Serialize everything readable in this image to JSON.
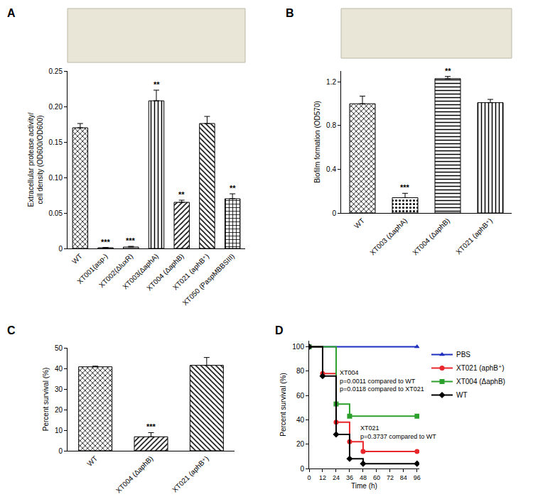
{
  "chart_data": [
    {
      "type": "bar",
      "title": "A",
      "y_label": "Extracellular protease activity/\ncell density (OD600/OD600)",
      "categories": [
        "WT",
        "XT001(asp-)",
        "XT002(ΔluxR)",
        "XT003(ΔaphA)",
        "XT004 (ΔaphB)",
        "XT021 (aphB⁺)",
        "XT050 (PaspMBBSIII)"
      ],
      "values": [
        0.17,
        0.001,
        0.002,
        0.208,
        0.065,
        0.176,
        0.07
      ],
      "errors": [
        0.006,
        0.0005,
        0.001,
        0.015,
        0.003,
        0.01,
        0.007
      ],
      "significance": [
        null,
        "***",
        "***",
        "**",
        "**",
        null,
        "**"
      ],
      "color": "#000000",
      "ylim": [
        0,
        0.25
      ],
      "yticks": [
        0,
        0.05,
        {
          "value": 0.1,
          "label": "0.10"
        },
        0.15,
        {
          "value": 0.2,
          "label": "0.20"
        },
        0.25
      ],
      "grid": false
    },
    {
      "type": "bar",
      "title": "B",
      "y_label": "Biofilm formation (OD570)",
      "categories": [
        "WT",
        "XT003 (ΔaphA)",
        "XT004 (ΔaphB)",
        "XT021 (aphB⁺)"
      ],
      "values": [
        1.0,
        0.14,
        1.23,
        1.01
      ],
      "errors": [
        0.07,
        0.04,
        0.02,
        0.03
      ],
      "significance": [
        null,
        "***",
        "**",
        null
      ],
      "color": "#000000",
      "ylim": [
        0,
        1.3
      ],
      "yticks": [
        0,
        0.4,
        0.8,
        1.2
      ],
      "grid": false
    },
    {
      "type": "bar",
      "title": "C",
      "y_label": "Percent survival (%)",
      "categories": [
        "WT",
        "XT004 (ΔaphB)",
        "XT021 (aphB⁺)"
      ],
      "values": [
        40.8,
        6.8,
        41.5
      ],
      "errors": [
        0.3,
        2.0,
        3.8
      ],
      "significance": [
        null,
        "***",
        null
      ],
      "color": "#000000",
      "ylim": [
        0,
        50
      ],
      "yticks": [
        0,
        10,
        20,
        30,
        40,
        50
      ],
      "grid": false
    },
    {
      "type": "line",
      "title": "D",
      "x_label": "Time (h)",
      "y_label": "Percent survival (%)",
      "line_style": "step",
      "legend": "right",
      "xlim": [
        0,
        98
      ],
      "xticks": [
        0,
        12,
        24,
        36,
        48,
        60,
        72,
        84,
        96
      ],
      "ylim": [
        0,
        105
      ],
      "yticks": [
        0,
        20,
        40,
        60,
        80,
        100
      ],
      "grid": false,
      "series": [
        {
          "name": "PBS",
          "color": "#1f2fbf",
          "marker": "triangle-up",
          "x": [
            0,
            96
          ],
          "values": [
            100,
            100
          ]
        },
        {
          "name": "XT021 (aphB⁺)",
          "color": "#e8262b",
          "marker": "circle",
          "x": [
            0,
            12,
            24,
            36,
            48,
            96
          ],
          "values": [
            100,
            78,
            38,
            22,
            14,
            14
          ]
        },
        {
          "name": "XT004 (ΔaphB)",
          "color": "#2ca02c",
          "marker": "square",
          "x": [
            0,
            24,
            36,
            96
          ],
          "values": [
            100,
            53,
            43,
            43
          ]
        },
        {
          "name": "WT",
          "color": "#000000",
          "marker": "diamond",
          "x": [
            0,
            12,
            24,
            36,
            48,
            96
          ],
          "values": [
            100,
            76,
            28,
            8,
            4,
            4
          ]
        }
      ],
      "annotations": [
        "XT004\np=0.0011 compared to WT\np=0.0118 compared to XT021",
        "XT021\np=0.3737 compared to WT"
      ]
    }
  ]
}
